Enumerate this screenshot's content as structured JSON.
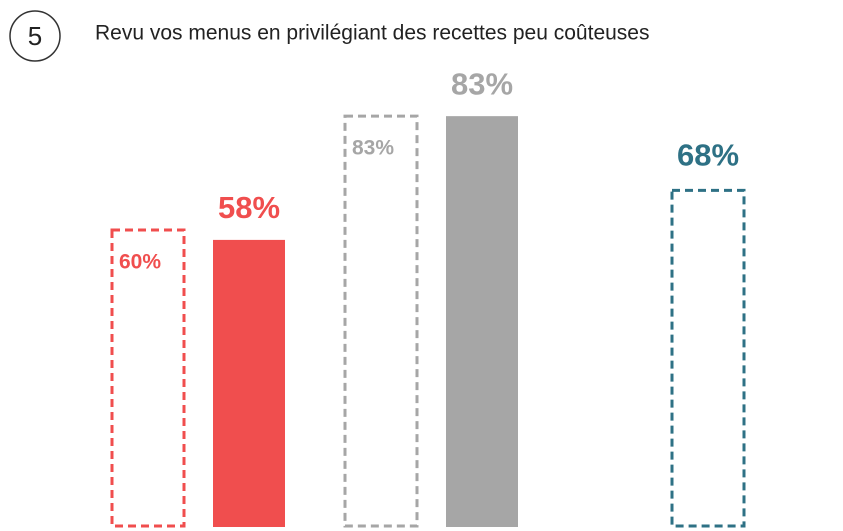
{
  "question_number": "5",
  "chart_data": {
    "type": "bar",
    "title": "Revu vos menus en privilégiant des recettes peu coûteuses",
    "categories": [
      null,
      null,
      null
    ],
    "colors": [
      "#f04e4e",
      "#a6a6a6",
      "#2e7185"
    ],
    "series": [
      {
        "style": "dashed",
        "values": [
          60,
          83,
          68
        ],
        "value_labels": [
          "60%",
          "83%",
          "68%"
        ]
      },
      {
        "style": "solid",
        "values": [
          58,
          83,
          null
        ],
        "value_labels": [
          "58%",
          "83%",
          null
        ]
      }
    ]
  }
}
